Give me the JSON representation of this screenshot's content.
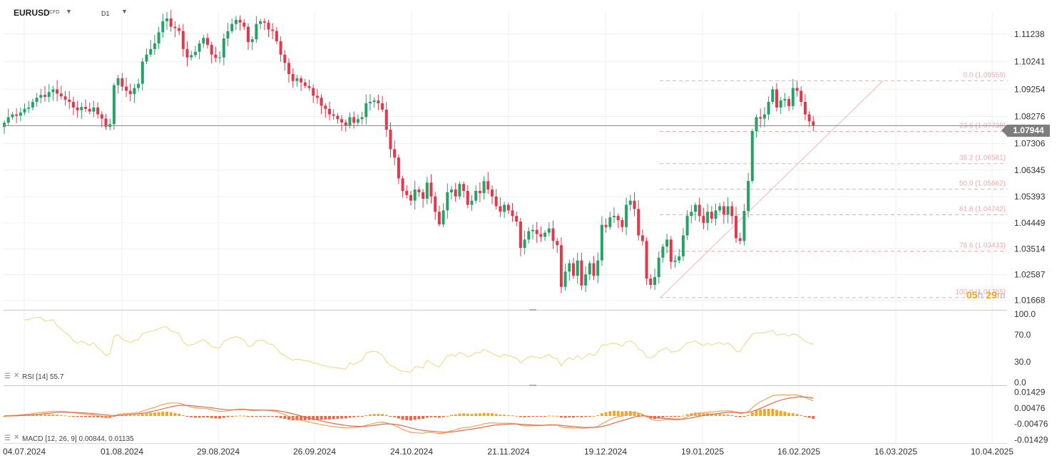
{
  "toolbar": {
    "symbol": "EURUSD",
    "symbol_type": "CFD",
    "timeframe": "D1"
  },
  "timer": {
    "hours": "05",
    "h": "h",
    "minutes": "29",
    "m": "m"
  },
  "colors": {
    "up": "#26a269",
    "down": "#e0394b",
    "rsi": "#f2dc91",
    "macd": "#f5a05a",
    "signal": "#e8684a",
    "fib": "#f0a8ad",
    "grid": "#efefef"
  },
  "chart_data": [
    {
      "type": "candlestick",
      "title": "EURUSD",
      "ylim": [
        1.0135,
        1.1195
      ],
      "y_ticks": [
        "1.11238",
        "1.10241",
        "1.09254",
        "1.08276",
        "1.07306",
        "1.06345",
        "1.05393",
        "1.04449",
        "1.03514",
        "1.02587",
        "1.01668"
      ],
      "y_tick_values": [
        1.11238,
        1.10241,
        1.09254,
        1.08276,
        1.07306,
        1.06345,
        1.05393,
        1.04449,
        1.03514,
        1.02587,
        1.01668
      ],
      "x_ticks": [
        "04.07.2024",
        "01.08.2024",
        "29.08.2024",
        "26.09.2024",
        "24.10.2024",
        "21.11.2024",
        "19.12.2024",
        "19.01.2025",
        "16.02.2025",
        "16.03.2025",
        "10.04.2025"
      ],
      "current_price": "1.07944",
      "current_value": 1.07944,
      "fibonacci": [
        {
          "label": "0.0 (1.09559)",
          "value": 1.09559
        },
        {
          "label": "23.6 (1.07738)",
          "value": 1.07738
        },
        {
          "label": "38.2 (1.06581)",
          "value": 1.06581
        },
        {
          "label": "50.0 (1.05662)",
          "value": 1.05662
        },
        {
          "label": "61.8 (1.04742)",
          "value": 1.04742
        },
        {
          "label": "78.6 (1.03433)",
          "value": 1.03433
        },
        {
          "label": "100.0 (1.01765)",
          "value": 1.01765
        }
      ],
      "closes": [
        1.0805,
        1.0825,
        1.0835,
        1.083,
        1.0842,
        1.0855,
        1.086,
        1.088,
        1.0895,
        1.0905,
        1.0898,
        1.0915,
        1.0925,
        1.091,
        1.09,
        1.0888,
        1.088,
        1.086,
        1.085,
        1.0862,
        1.0855,
        1.0845,
        1.086,
        1.0835,
        1.082,
        1.079,
        1.08,
        1.094,
        1.0965,
        1.0935,
        1.092,
        1.0908,
        1.093,
        1.0945,
        1.1025,
        1.105,
        1.107,
        1.109,
        1.113,
        1.117,
        1.118,
        1.115,
        1.1145,
        1.1135,
        1.107,
        1.104,
        1.1048,
        1.106,
        1.109,
        1.111,
        1.1085,
        1.105,
        1.1038,
        1.104,
        1.1108,
        1.1134,
        1.116,
        1.1175,
        1.1165,
        1.115,
        1.1095,
        1.1105,
        1.116,
        1.117,
        1.1165,
        1.114,
        1.1135,
        1.1098,
        1.105,
        1.102,
        1.098,
        1.0955,
        1.0965,
        1.095,
        1.0937,
        1.093,
        1.0902,
        1.0895,
        1.0866,
        1.0855,
        1.0835,
        1.083,
        1.0818,
        1.0806,
        1.0795,
        1.0825,
        1.0805,
        1.0818,
        1.0825,
        1.0875,
        1.088,
        1.0885,
        1.0875,
        1.0852,
        1.078,
        1.071,
        1.068,
        1.0605,
        1.056,
        1.0545,
        1.0525,
        1.0565,
        1.0555,
        1.0532,
        1.059,
        1.054,
        1.0485,
        1.044,
        1.049,
        1.0555,
        1.0565,
        1.054,
        1.0585,
        1.056,
        1.051,
        1.0525,
        1.056,
        1.0552,
        1.0595,
        1.0565,
        1.054,
        1.0505,
        1.0485,
        1.051,
        1.049,
        1.047,
        1.045,
        1.0355,
        1.0385,
        1.0415,
        1.042,
        1.0405,
        1.0395,
        1.041,
        1.0425,
        1.038,
        1.0365,
        1.0215,
        1.027,
        1.03,
        1.0255,
        1.031,
        1.022,
        1.026,
        1.03,
        1.0255,
        1.031,
        1.0438,
        1.043,
        1.0465,
        1.047,
        1.0455,
        1.043,
        1.051,
        1.0525,
        1.0495,
        1.04,
        1.038,
        1.0245,
        1.0222,
        1.025,
        1.032,
        1.036,
        1.0385,
        1.0305,
        1.031,
        1.0325,
        1.04,
        1.047,
        1.0485,
        1.051,
        1.047,
        1.0445,
        1.0485,
        1.046,
        1.049,
        1.0505,
        1.0475,
        1.0505,
        1.047,
        1.039,
        1.038,
        1.0488,
        1.0596,
        1.0775,
        1.0825,
        1.082,
        1.0835,
        1.088,
        1.0925,
        1.086,
        1.0885,
        1.089,
        1.0865,
        1.093,
        1.092,
        1.088,
        1.0835,
        1.081,
        1.0794
      ]
    },
    {
      "type": "line",
      "title": "RSI [14] 55.7",
      "name": "RSI",
      "period": "14",
      "current": "55.7",
      "ylim": [
        0,
        100
      ],
      "y_ticks": [
        "100.0",
        "70.0",
        "30.0",
        "0.0"
      ],
      "y_tick_values": [
        100,
        70,
        30,
        0
      ]
    },
    {
      "type": "bar",
      "title": "MACD [12, 26, 9] 0.00844, 0.01135",
      "name": "MACD",
      "params": "12, 26, 9",
      "macd_value": "0.00844",
      "signal_value": "0.01135",
      "ylim": [
        -0.0153,
        0.0153
      ],
      "y_ticks": [
        "0.01429",
        "0.00476",
        "-0.00476",
        "-0.01429"
      ],
      "y_tick_values": [
        0.01429,
        0.00476,
        -0.00476,
        -0.01429
      ]
    }
  ]
}
